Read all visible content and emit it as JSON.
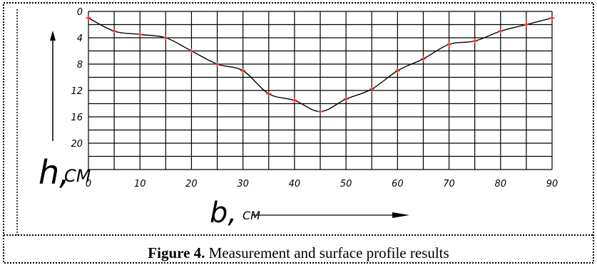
{
  "caption": {
    "label": "Figure 4.",
    "text": "Measurement and surface profile results"
  },
  "chart_data": {
    "type": "line",
    "title": "",
    "xlabel": "b, см",
    "ylabel": "h, см",
    "x_ticks": [
      "0",
      "10",
      "20",
      "30",
      "40",
      "50",
      "60",
      "70",
      "80",
      "90"
    ],
    "y_ticks": [
      "0",
      "4",
      "8",
      "12",
      "16",
      "20"
    ],
    "xlim": [
      0,
      90
    ],
    "ylim": [
      0,
      24
    ],
    "y_inverted": true,
    "grid": true,
    "series": [
      {
        "x": [
          0,
          5,
          10,
          15,
          20,
          25,
          30,
          35,
          40,
          45,
          50,
          55,
          60,
          65,
          70,
          75,
          80,
          85,
          90
        ],
        "y": [
          1.0,
          3.0,
          3.5,
          4.0,
          6.0,
          8.0,
          9.0,
          12.5,
          13.5,
          15.2,
          13.3,
          11.8,
          9.0,
          7.2,
          5.0,
          4.5,
          3.0,
          2.0,
          1.0
        ]
      }
    ],
    "colors": {
      "line": "#000000",
      "markers": "#e03a3a",
      "grid": "#000000"
    }
  }
}
